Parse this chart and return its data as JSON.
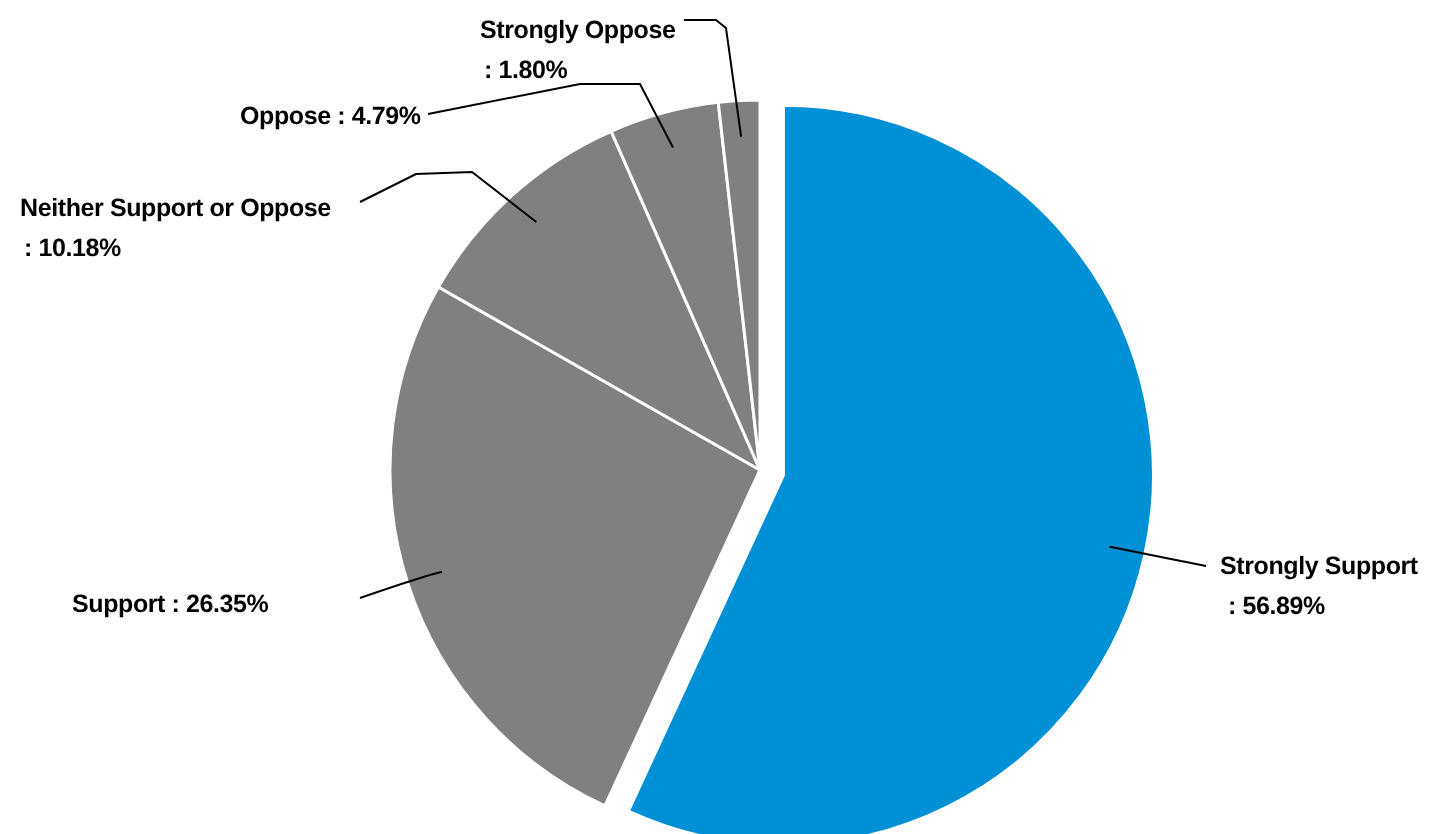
{
  "chart_data": {
    "type": "pie",
    "categories": [
      "Strongly Support",
      "Support",
      "Neither Support or Oppose",
      "Oppose",
      "Strongly Oppose"
    ],
    "values": [
      56.89,
      26.35,
      10.18,
      4.79,
      1.8
    ],
    "colors": [
      "#0090d6",
      "#808080",
      "#808080",
      "#808080",
      "#808080"
    ],
    "value_labels": [
      ": 56.89%",
      ": 26.35%",
      ": 10.18%",
      ": 4.79%",
      ": 1.80%"
    ]
  }
}
